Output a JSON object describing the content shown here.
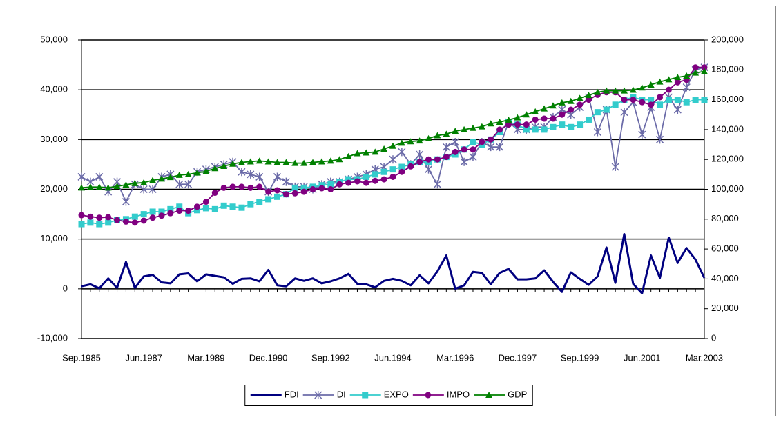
{
  "chart_data": {
    "type": "line",
    "categories": [
      "Sep.1985",
      null,
      null,
      null,
      null,
      null,
      null,
      "Jun.1987",
      null,
      null,
      null,
      null,
      null,
      null,
      "Mar.1989",
      null,
      null,
      null,
      null,
      null,
      null,
      "Dec.1990",
      null,
      null,
      null,
      null,
      null,
      null,
      "Sep.1992",
      null,
      null,
      null,
      null,
      null,
      null,
      "Jun.1994",
      null,
      null,
      null,
      null,
      null,
      null,
      "Mar.1996",
      null,
      null,
      null,
      null,
      null,
      null,
      "Dec.1997",
      null,
      null,
      null,
      null,
      null,
      null,
      "Sep.1999",
      null,
      null,
      null,
      null,
      null,
      null,
      "Jun.2001",
      null,
      null,
      null,
      null,
      null,
      null,
      "Mar.2003"
    ],
    "ylim": [
      -10000,
      50000
    ],
    "yticks": [
      {
        "value": -10000,
        "label": "-10,000"
      },
      0,
      {
        "value": 10000,
        "label": "10,000"
      },
      {
        "value": 20000,
        "label": "20,000"
      },
      {
        "value": 30000,
        "label": "30,000"
      },
      {
        "value": 40000,
        "label": "40,000"
      },
      {
        "value": 50000,
        "label": "50,000"
      }
    ],
    "y2lim": [
      0,
      200000
    ],
    "y2ticks": [
      0,
      {
        "value": 20000,
        "label": "20,000"
      },
      {
        "value": 40000,
        "label": "40,000"
      },
      {
        "value": 60000,
        "label": "60,000"
      },
      {
        "value": 80000,
        "label": "80,000"
      },
      {
        "value": 100000,
        "label": "100,000"
      },
      {
        "value": 120000,
        "label": "120,000"
      },
      {
        "value": 140000,
        "label": "140,000"
      },
      {
        "value": 160000,
        "label": "160,000"
      },
      {
        "value": 180000,
        "label": "180,000"
      },
      {
        "value": 200000,
        "label": "200,000"
      }
    ],
    "grid": true,
    "legend": "bottom",
    "series": [
      {
        "name": "FDI",
        "color": "#000080",
        "marker": "none",
        "values": [
          500,
          900,
          100,
          2100,
          200,
          5400,
          200,
          2500,
          2800,
          1300,
          1100,
          2900,
          3100,
          1500,
          2900,
          2600,
          2300,
          1000,
          2000,
          2100,
          1500,
          3800,
          700,
          500,
          2100,
          1600,
          2100,
          1100,
          1500,
          2100,
          3000,
          1000,
          900,
          300,
          1600,
          2000,
          1600,
          700,
          2700,
          1100,
          3500,
          6700,
          0,
          700,
          3400,
          3200,
          900,
          3200,
          4000,
          1900,
          1900,
          2100,
          3700,
          1400,
          -600,
          3300,
          2000,
          800,
          2500,
          8300,
          1200,
          11000,
          1000,
          -900,
          6700,
          2200,
          10300,
          5200,
          8200,
          5900,
          2200
        ]
      },
      {
        "name": "DI",
        "color": "#6b6ba8",
        "marker": "star",
        "values": [
          22500,
          21500,
          22500,
          19500,
          21500,
          17500,
          21000,
          20000,
          20000,
          22500,
          23000,
          21000,
          21000,
          23500,
          24000,
          24500,
          25000,
          25500,
          23500,
          23000,
          22500,
          19500,
          22500,
          21500,
          20500,
          20500,
          20000,
          21000,
          21500,
          21500,
          22000,
          22500,
          23000,
          24000,
          24500,
          26000,
          27500,
          25000,
          27000,
          24000,
          21000,
          28500,
          29500,
          25500,
          26500,
          29500,
          28500,
          28500,
          33500,
          32000,
          32000,
          32500,
          32500,
          34500,
          36000,
          35000,
          36500,
          38500,
          31500,
          36000,
          24500,
          35500,
          37500,
          31000,
          36500,
          30000,
          38500,
          36000,
          40500,
          44000,
          44500
        ]
      },
      {
        "name": "EXPO",
        "color": "#33cccc",
        "marker": "square",
        "values": [
          13000,
          13300,
          13000,
          13300,
          13800,
          14000,
          14500,
          15000,
          15500,
          15500,
          16000,
          16500,
          15200,
          15800,
          16200,
          16000,
          16700,
          16500,
          16300,
          17000,
          17500,
          18000,
          18500,
          19000,
          20300,
          20300,
          20500,
          20800,
          21000,
          21500,
          22000,
          22000,
          22500,
          23000,
          23500,
          24000,
          24500,
          25000,
          25500,
          25500,
          26000,
          26500,
          27000,
          28000,
          29500,
          29000,
          30000,
          31500,
          33500,
          33000,
          32000,
          32000,
          32000,
          32500,
          33000,
          32500,
          33000,
          34000,
          35500,
          36000,
          37000,
          38000,
          38500,
          38000,
          38000,
          37000,
          38000,
          38000,
          37500,
          38000,
          38000
        ]
      },
      {
        "name": "IMPO",
        "color": "#800080",
        "marker": "circle",
        "values": [
          14800,
          14500,
          14300,
          14400,
          13800,
          13500,
          13300,
          13700,
          14300,
          14700,
          15200,
          15700,
          15700,
          16500,
          17500,
          19300,
          20300,
          20500,
          20500,
          20300,
          20500,
          19500,
          19800,
          19000,
          19200,
          19500,
          20000,
          20200,
          20000,
          21000,
          21300,
          21600,
          21300,
          21700,
          22000,
          22500,
          23500,
          24600,
          25500,
          26000,
          26000,
          26500,
          27500,
          28000,
          28000,
          29500,
          30000,
          32000,
          33000,
          33000,
          33000,
          34000,
          34200,
          34200,
          35000,
          36000,
          37000,
          38000,
          39000,
          39500,
          39500,
          38000,
          38000,
          37500,
          37000,
          38500,
          40000,
          41500,
          42000,
          44500,
          44500
        ]
      },
      {
        "name": "GDP",
        "color": "#008000",
        "marker": "triangle",
        "axis": "y2",
        "values": [
          101000,
          101500,
          101500,
          101000,
          102000,
          103000,
          104000,
          104500,
          106000,
          107000,
          108000,
          109500,
          110000,
          111000,
          112000,
          114000,
          115500,
          117000,
          118000,
          118500,
          119000,
          118500,
          118000,
          118000,
          117500,
          117500,
          118000,
          118500,
          119000,
          120000,
          122000,
          124000,
          124500,
          125000,
          127000,
          129000,
          131000,
          132000,
          132500,
          134000,
          136000,
          137000,
          139000,
          140000,
          141000,
          142000,
          144000,
          145000,
          146500,
          148000,
          150000,
          152000,
          154000,
          156000,
          158000,
          159000,
          161000,
          163000,
          165000,
          166000,
          166000,
          166000,
          166500,
          168000,
          170000,
          172000,
          173500,
          175000,
          176000,
          178000,
          179000
        ]
      }
    ]
  }
}
